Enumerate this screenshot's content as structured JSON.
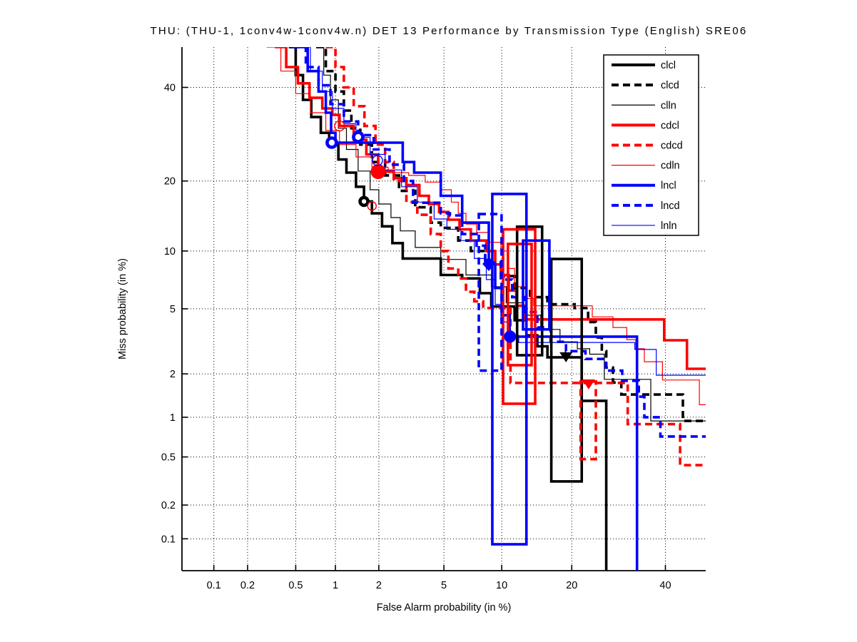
{
  "title": "THU: (THU-1, 1conv4w-1conv4w.n) DET 13 Performance by Transmission Type (English) SRE06",
  "axes": {
    "x_label": "False Alarm probability (in %)",
    "y_label": "Miss probability (in %)",
    "scale": "normal-deviate (probit), DET plot",
    "range_percent": [
      0.05,
      50
    ],
    "ticks": [
      0.1,
      0.2,
      0.5,
      1,
      2,
      5,
      10,
      20,
      40
    ],
    "tick_labels": [
      "0.1",
      "0.2",
      "0.5",
      "1",
      "2",
      "5",
      "10",
      "20",
      "40"
    ],
    "grid": "dotted"
  },
  "colors": {
    "black": "#000000",
    "red": "#ff0000",
    "blue": "#0000ff",
    "background": "#ffffff"
  },
  "legend": {
    "position": "top-right",
    "entries": [
      {
        "label": "clcl",
        "color": "#000000",
        "weight": "thick",
        "dash": "solid"
      },
      {
        "label": "clcd",
        "color": "#000000",
        "weight": "thick",
        "dash": "dashed"
      },
      {
        "label": "clln",
        "color": "#000000",
        "weight": "thin",
        "dash": "solid"
      },
      {
        "label": "cdcl",
        "color": "#ff0000",
        "weight": "thick",
        "dash": "solid"
      },
      {
        "label": "cdcd",
        "color": "#ff0000",
        "weight": "thick",
        "dash": "dashed"
      },
      {
        "label": "cdln",
        "color": "#ff0000",
        "weight": "thin",
        "dash": "solid"
      },
      {
        "label": "lncl",
        "color": "#0000ff",
        "weight": "thick",
        "dash": "solid"
      },
      {
        "label": "lncd",
        "color": "#0000ff",
        "weight": "thick",
        "dash": "dashed"
      },
      {
        "label": "lnln",
        "color": "#0000ff",
        "weight": "thin",
        "dash": "solid"
      }
    ]
  },
  "chart_data": {
    "type": "line",
    "subtype": "DET step curves, values are [false_alarm_%, miss_%], approximate",
    "step_mode": "hv",
    "xlabel": "False Alarm probability (in %)",
    "ylabel": "Miss probability (in %)",
    "xlim": [
      0.05,
      50
    ],
    "ylim": [
      0.05,
      50
    ],
    "series": [
      {
        "name": "clcl",
        "color": "#000000",
        "lw": 3.6,
        "dash": "solid",
        "points": [
          [
            0.44,
            50
          ],
          [
            0.5,
            43
          ],
          [
            0.57,
            37
          ],
          [
            0.66,
            33
          ],
          [
            0.78,
            29.5
          ],
          [
            0.9,
            27
          ],
          [
            1.05,
            24
          ],
          [
            1.2,
            21.5
          ],
          [
            1.4,
            19
          ],
          [
            1.59,
            16.6
          ],
          [
            1.8,
            14.8
          ],
          [
            2.1,
            13
          ],
          [
            2.45,
            10.9
          ],
          [
            2.85,
            9.2
          ],
          [
            4.8,
            7.6
          ],
          [
            6.3,
            7.3
          ],
          [
            7.8,
            6.1
          ],
          [
            8.9,
            5.15
          ],
          [
            11.5,
            4.3
          ],
          [
            13,
            3.5
          ],
          [
            14.5,
            3.0
          ],
          [
            16,
            2.56
          ],
          [
            21.8,
            1.31
          ],
          [
            26.6,
            0.05
          ]
        ]
      },
      {
        "name": "clcd",
        "color": "#000000",
        "lw": 3.6,
        "dash": "dashed",
        "points": [
          [
            0.72,
            50
          ],
          [
            0.85,
            44
          ],
          [
            1.0,
            39
          ],
          [
            1.15,
            34.5
          ],
          [
            1.3,
            30.5
          ],
          [
            1.5,
            27
          ],
          [
            1.8,
            23.5
          ],
          [
            2.2,
            21
          ],
          [
            2.7,
            18.3
          ],
          [
            3.4,
            15.7
          ],
          [
            4.2,
            13.5
          ],
          [
            4.8,
            12.8
          ],
          [
            6.0,
            11.2
          ],
          [
            7.0,
            10
          ],
          [
            8.3,
            8.8
          ],
          [
            9.9,
            7.5
          ],
          [
            11.5,
            6.5
          ],
          [
            13.5,
            5.8
          ],
          [
            16,
            5.3
          ],
          [
            20.5,
            5.05
          ],
          [
            23,
            4.2
          ],
          [
            24.5,
            3.4
          ],
          [
            25.7,
            2.8
          ],
          [
            26.6,
            2.2
          ],
          [
            28,
            1.75
          ],
          [
            29.8,
            1.45
          ],
          [
            44.3,
            0.94
          ],
          [
            51,
            0.94
          ]
        ]
      },
      {
        "name": "clln",
        "color": "#000000",
        "lw": 1.2,
        "dash": "solid",
        "points": [
          [
            0.72,
            50
          ],
          [
            0.82,
            43
          ],
          [
            0.92,
            37
          ],
          [
            1.05,
            30.5
          ],
          [
            1.2,
            26
          ],
          [
            1.45,
            21.8
          ],
          [
            1.75,
            18.5
          ],
          [
            2.0,
            16.2
          ],
          [
            2.4,
            14.2
          ],
          [
            2.75,
            12.4
          ],
          [
            3.4,
            10.4
          ],
          [
            4.8,
            9.1
          ],
          [
            6.6,
            7.6
          ],
          [
            8.9,
            6.6
          ],
          [
            10.5,
            5.4
          ],
          [
            12.5,
            4.6
          ],
          [
            15,
            3.8
          ],
          [
            18,
            3.2
          ],
          [
            21,
            2.9
          ],
          [
            23.3,
            2.68
          ],
          [
            26.2,
            1.84
          ],
          [
            36.5,
            0.94
          ],
          [
            51,
            0.94
          ]
        ]
      },
      {
        "name": "cdcl",
        "color": "#ff0000",
        "lw": 3.6,
        "dash": "solid",
        "points": [
          [
            0.34,
            50
          ],
          [
            0.42,
            45
          ],
          [
            0.52,
            41
          ],
          [
            0.64,
            37.5
          ],
          [
            0.8,
            35
          ],
          [
            0.95,
            33.5
          ],
          [
            1.07,
            31
          ],
          [
            1.35,
            28
          ],
          [
            1.65,
            25
          ],
          [
            1.98,
            21.7
          ],
          [
            2.5,
            20.5
          ],
          [
            3.0,
            19.3
          ],
          [
            3.6,
            17.5
          ],
          [
            4.1,
            16.2
          ],
          [
            4.7,
            15
          ],
          [
            5.3,
            13.9
          ],
          [
            6.1,
            12.6
          ],
          [
            7.0,
            11.2
          ],
          [
            8.4,
            10
          ],
          [
            9.3,
            8.6
          ],
          [
            9.9,
            7.6
          ],
          [
            10.8,
            6.3
          ],
          [
            11.7,
            5.2
          ],
          [
            12.7,
            4.35
          ],
          [
            39.7,
            3.27
          ],
          [
            45.3,
            2.16
          ],
          [
            51,
            2.16
          ]
        ]
      },
      {
        "name": "cdcd",
        "color": "#ff0000",
        "lw": 3.6,
        "dash": "dashed",
        "points": [
          [
            0.85,
            50
          ],
          [
            1.0,
            45
          ],
          [
            1.15,
            40
          ],
          [
            1.35,
            35.5
          ],
          [
            1.6,
            31
          ],
          [
            1.9,
            27
          ],
          [
            2.2,
            23.5
          ],
          [
            2.5,
            20
          ],
          [
            3.0,
            16.5
          ],
          [
            3.5,
            14.6
          ],
          [
            4.2,
            12
          ],
          [
            4.8,
            10
          ],
          [
            5.3,
            8.2
          ],
          [
            6.0,
            7.3
          ],
          [
            6.6,
            6.2
          ],
          [
            7.3,
            5.5
          ],
          [
            8.1,
            5.05
          ],
          [
            11,
            1.74
          ],
          [
            31.2,
            0.89
          ],
          [
            43.6,
            0.43
          ],
          [
            51,
            0.43
          ]
        ]
      },
      {
        "name": "cdln",
        "color": "#ff0000",
        "lw": 1.2,
        "dash": "solid",
        "points": [
          [
            0.29,
            50
          ],
          [
            0.38,
            44
          ],
          [
            0.5,
            38.5
          ],
          [
            0.65,
            34
          ],
          [
            0.85,
            30
          ],
          [
            1.07,
            27
          ],
          [
            1.4,
            24.5
          ],
          [
            1.8,
            22.5
          ],
          [
            2.3,
            21.5
          ],
          [
            3.1,
            21
          ],
          [
            3.9,
            19.8
          ],
          [
            4.8,
            18.5
          ],
          [
            5.5,
            16.5
          ],
          [
            6.0,
            14.8
          ],
          [
            6.6,
            13.3
          ],
          [
            7.5,
            12.2
          ],
          [
            8.6,
            11
          ],
          [
            9.9,
            10
          ],
          [
            10.8,
            8.2
          ],
          [
            11.5,
            6.6
          ],
          [
            13,
            5.7
          ],
          [
            14,
            5.2
          ],
          [
            23.8,
            4.5
          ],
          [
            28,
            3.9
          ],
          [
            31,
            3.3
          ],
          [
            33,
            2.9
          ],
          [
            35,
            2.4
          ],
          [
            39.3,
            1.82
          ],
          [
            48.4,
            1.23
          ],
          [
            51,
            1.23
          ]
        ]
      },
      {
        "name": "lncl",
        "color": "#0000ff",
        "lw": 3.6,
        "dash": "solid",
        "points": [
          [
            0.5,
            50
          ],
          [
            0.62,
            44
          ],
          [
            0.75,
            39
          ],
          [
            0.85,
            34
          ],
          [
            0.93,
            29.5
          ],
          [
            1.0,
            27.4
          ],
          [
            2.85,
            23.5
          ],
          [
            3.35,
            21.5
          ],
          [
            4.8,
            17.5
          ],
          [
            6.3,
            13.5
          ],
          [
            8.65,
            8.65
          ],
          [
            9.3,
            6.5
          ],
          [
            10,
            4.6
          ],
          [
            10.9,
            3.44
          ],
          [
            33.3,
            0.05
          ]
        ]
      },
      {
        "name": "lncd",
        "color": "#0000ff",
        "lw": 3.6,
        "dash": "dashed",
        "points": [
          [
            0.47,
            50
          ],
          [
            0.6,
            45
          ],
          [
            0.75,
            40.5
          ],
          [
            0.92,
            36
          ],
          [
            1.15,
            32
          ],
          [
            1.45,
            29
          ],
          [
            1.85,
            26
          ],
          [
            2.35,
            23
          ],
          [
            2.9,
            20
          ],
          [
            3.3,
            16.4
          ],
          [
            4.8,
            14.8
          ],
          [
            5.4,
            14.5
          ],
          [
            6.3,
            12
          ],
          [
            7.5,
            10.6
          ],
          [
            8.3,
            8.8
          ],
          [
            9.9,
            7.2
          ],
          [
            11.2,
            5.8
          ],
          [
            12.8,
            4.8
          ],
          [
            14.5,
            3.9
          ],
          [
            16.5,
            3.2
          ],
          [
            19,
            2.8
          ],
          [
            22.5,
            2.5
          ],
          [
            26.5,
            2.1
          ],
          [
            30,
            1.8
          ],
          [
            33.7,
            1.4
          ],
          [
            35,
            1.0
          ],
          [
            38.8,
            0.72
          ],
          [
            50.5,
            0.72
          ]
        ]
      },
      {
        "name": "lnln",
        "color": "#0000ff",
        "lw": 1.2,
        "dash": "solid",
        "points": [
          [
            0.53,
            50
          ],
          [
            0.65,
            44
          ],
          [
            0.8,
            39
          ],
          [
            0.95,
            35
          ],
          [
            1.15,
            31.5
          ],
          [
            1.4,
            28.5
          ],
          [
            1.75,
            25
          ],
          [
            2.2,
            22
          ],
          [
            2.8,
            19
          ],
          [
            3.5,
            16.5
          ],
          [
            4.4,
            14
          ],
          [
            5.2,
            12.6
          ],
          [
            6.2,
            11.2
          ],
          [
            7.3,
            9.2
          ],
          [
            8.4,
            7.2
          ],
          [
            9.3,
            5.3
          ],
          [
            10.1,
            4.2
          ],
          [
            11,
            3.5
          ],
          [
            12,
            3.17
          ],
          [
            32.8,
            2.87
          ],
          [
            37.8,
            1.96
          ],
          [
            51,
            1.96
          ]
        ]
      }
    ],
    "boxes": [
      {
        "series": "clcl",
        "color": "#000000",
        "lw": 3.6,
        "dash": "solid",
        "fa": [
          11.8,
          15.2
        ],
        "miss": [
          12.95,
          2.64
        ]
      },
      {
        "series": "clcl",
        "color": "#000000",
        "lw": 3.6,
        "dash": "solid",
        "fa": [
          16.6,
          21.8
        ],
        "miss": [
          9.15,
          0.317
        ]
      },
      {
        "series": "cdcl",
        "color": "#ff0000",
        "lw": 3.6,
        "dash": "solid",
        "fa": [
          10.15,
          14.2
        ],
        "miss": [
          12.6,
          1.25
        ]
      },
      {
        "series": "cdcl",
        "color": "#ff0000",
        "lw": 3.6,
        "dash": "solid",
        "fa": [
          10.7,
          13.7
        ],
        "miss": [
          10.8,
          2.28
        ]
      },
      {
        "series": "cdcd",
        "color": "#ff0000",
        "lw": 3.6,
        "dash": "dashed",
        "fa": [
          21.6,
          24.5
        ],
        "miss": [
          1.78,
          0.48
        ]
      },
      {
        "series": "lncl",
        "color": "#0000ff",
        "lw": 3.6,
        "dash": "solid",
        "fa": [
          9.0,
          13.0
        ],
        "miss": [
          17.8,
          0.089
        ]
      },
      {
        "series": "lncl",
        "color": "#0000ff",
        "lw": 3.6,
        "dash": "solid",
        "fa": [
          12.55,
          16.3
        ],
        "miss": [
          11.2,
          3.8
        ]
      },
      {
        "series": "lncd",
        "color": "#0000ff",
        "lw": 3.6,
        "dash": "dashed",
        "fa": [
          7.7,
          9.98
        ],
        "miss": [
          14.7,
          2.1
        ]
      }
    ],
    "markers": [
      {
        "shape": "circle",
        "style": "donut",
        "color": "#0000ff",
        "fa": 0.94,
        "miss": 27.4,
        "size": 8
      },
      {
        "shape": "circle",
        "style": "donut",
        "color": "#0000ff",
        "fa": 1.45,
        "miss": 28.6,
        "size": 8
      },
      {
        "shape": "circle",
        "style": "solid",
        "color": "#ff0000",
        "fa": 1.98,
        "miss": 21.7,
        "size": 10
      },
      {
        "shape": "circle",
        "style": "donut",
        "color": "#000000",
        "fa": 1.59,
        "miss": 16.6,
        "size": 7
      },
      {
        "shape": "circle",
        "style": "open",
        "color": "#ff0000",
        "fa": 1.07,
        "miss": 31.0,
        "size": 7
      },
      {
        "shape": "circle",
        "style": "open",
        "color": "#0000ff",
        "fa": 1.96,
        "miss": 23.8,
        "size": 7
      },
      {
        "shape": "circle",
        "style": "open",
        "color": "#ff0000",
        "fa": 1.8,
        "miss": 15.9,
        "size": 6
      },
      {
        "shape": "diamond",
        "style": "solid",
        "color": "#0000ff",
        "fa": 8.65,
        "miss": 8.65,
        "size": 9
      },
      {
        "shape": "circle",
        "style": "solid",
        "color": "#0000ff",
        "fa": 10.95,
        "miss": 3.44,
        "size": 8
      },
      {
        "shape": "triangle-down",
        "style": "solid",
        "color": "#000000",
        "fa": 19.0,
        "miss": 2.56,
        "size": 9
      },
      {
        "shape": "triangle-down",
        "style": "solid",
        "color": "#ff0000",
        "fa": 23.1,
        "miss": 1.7,
        "size": 9
      }
    ]
  }
}
